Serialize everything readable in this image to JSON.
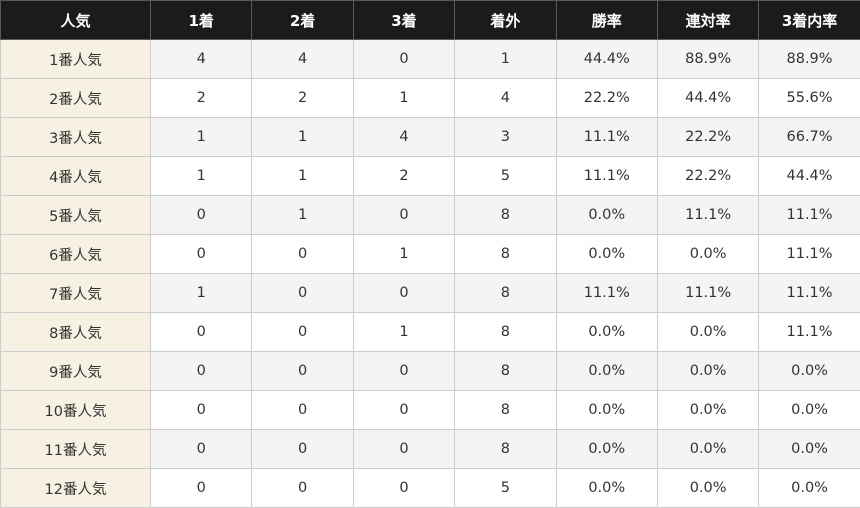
{
  "table": {
    "headers": [
      "人気",
      "1着",
      "2着",
      "3着",
      "着外",
      "勝率",
      "連対率",
      "3着内率"
    ],
    "rows": [
      [
        "1番人気",
        "4",
        "4",
        "0",
        "1",
        "44.4%",
        "88.9%",
        "88.9%"
      ],
      [
        "2番人気",
        "2",
        "2",
        "1",
        "4",
        "22.2%",
        "44.4%",
        "55.6%"
      ],
      [
        "3番人気",
        "1",
        "1",
        "4",
        "3",
        "11.1%",
        "22.2%",
        "66.7%"
      ],
      [
        "4番人気",
        "1",
        "1",
        "2",
        "5",
        "11.1%",
        "22.2%",
        "44.4%"
      ],
      [
        "5番人気",
        "0",
        "1",
        "0",
        "8",
        "0.0%",
        "11.1%",
        "11.1%"
      ],
      [
        "6番人気",
        "0",
        "0",
        "1",
        "8",
        "0.0%",
        "0.0%",
        "11.1%"
      ],
      [
        "7番人気",
        "1",
        "0",
        "0",
        "8",
        "11.1%",
        "11.1%",
        "11.1%"
      ],
      [
        "8番人気",
        "0",
        "0",
        "1",
        "8",
        "0.0%",
        "0.0%",
        "11.1%"
      ],
      [
        "9番人気",
        "0",
        "0",
        "0",
        "8",
        "0.0%",
        "0.0%",
        "0.0%"
      ],
      [
        "10番人気",
        "0",
        "0",
        "0",
        "8",
        "0.0%",
        "0.0%",
        "0.0%"
      ],
      [
        "11番人気",
        "0",
        "0",
        "0",
        "8",
        "0.0%",
        "0.0%",
        "0.0%"
      ],
      [
        "12番人気",
        "0",
        "0",
        "0",
        "5",
        "0.0%",
        "0.0%",
        "0.0%"
      ]
    ]
  },
  "colors": {
    "header_bg": "#1b1b1b",
    "header_text": "#ffffff",
    "label_bg": "#f6f1e2",
    "row_alt_bg": "#f4f4f4",
    "border": "#cccccc"
  }
}
